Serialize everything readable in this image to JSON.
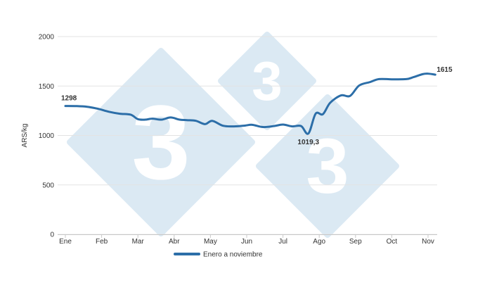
{
  "chart_data": {
    "type": "line",
    "title": "",
    "ylabel": "ARS/kg",
    "xlabel": "",
    "ylim": [
      0,
      2000
    ],
    "y_ticks": [
      0,
      500,
      1000,
      1500,
      2000
    ],
    "x_ticks": [
      "Ene",
      "Feb",
      "Mar",
      "Abr",
      "May",
      "Jun",
      "Jul",
      "Ago",
      "Sep",
      "Oct",
      "Nov"
    ],
    "grid": "horizontal",
    "legend_position": "bottom",
    "series": [
      {
        "name": "Enero a noviembre",
        "color": "#2c6ea8",
        "points": [
          {
            "x": 0,
            "y": 1298
          },
          {
            "x": 0.3,
            "y": 1297
          },
          {
            "x": 0.6,
            "y": 1290
          },
          {
            "x": 0.9,
            "y": 1270
          },
          {
            "x": 1.2,
            "y": 1240
          },
          {
            "x": 1.5,
            "y": 1220
          },
          {
            "x": 1.8,
            "y": 1210
          },
          {
            "x": 2.0,
            "y": 1165
          },
          {
            "x": 2.2,
            "y": 1160
          },
          {
            "x": 2.4,
            "y": 1170
          },
          {
            "x": 2.65,
            "y": 1160
          },
          {
            "x": 2.9,
            "y": 1182
          },
          {
            "x": 3.15,
            "y": 1160
          },
          {
            "x": 3.35,
            "y": 1155
          },
          {
            "x": 3.6,
            "y": 1148
          },
          {
            "x": 3.85,
            "y": 1115
          },
          {
            "x": 4.05,
            "y": 1148
          },
          {
            "x": 4.35,
            "y": 1098
          },
          {
            "x": 4.65,
            "y": 1092
          },
          {
            "x": 4.95,
            "y": 1100
          },
          {
            "x": 5.15,
            "y": 1108
          },
          {
            "x": 5.45,
            "y": 1085
          },
          {
            "x": 5.75,
            "y": 1095
          },
          {
            "x": 6.0,
            "y": 1110
          },
          {
            "x": 6.25,
            "y": 1092
          },
          {
            "x": 6.5,
            "y": 1095
          },
          {
            "x": 6.7,
            "y": 1019.3
          },
          {
            "x": 6.9,
            "y": 1220
          },
          {
            "x": 7.1,
            "y": 1215
          },
          {
            "x": 7.3,
            "y": 1330
          },
          {
            "x": 7.6,
            "y": 1405
          },
          {
            "x": 7.85,
            "y": 1400
          },
          {
            "x": 8.1,
            "y": 1505
          },
          {
            "x": 8.4,
            "y": 1540
          },
          {
            "x": 8.65,
            "y": 1570
          },
          {
            "x": 9.0,
            "y": 1568
          },
          {
            "x": 9.4,
            "y": 1570
          },
          {
            "x": 9.6,
            "y": 1590
          },
          {
            "x": 9.85,
            "y": 1620
          },
          {
            "x": 10.0,
            "y": 1625
          },
          {
            "x": 10.2,
            "y": 1615
          }
        ]
      }
    ],
    "annotations": [
      {
        "text": "1298",
        "x": 0,
        "y": 1298,
        "anchor": "start",
        "place": "above"
      },
      {
        "text": "1019,3",
        "x": 6.7,
        "y": 1019.3,
        "anchor": "middle",
        "place": "below"
      },
      {
        "text": "1615",
        "x": 10.2,
        "y": 1615,
        "anchor": "start",
        "place": "right"
      }
    ]
  },
  "watermark": {
    "glyph": "3",
    "color": "#dbe9f3"
  }
}
